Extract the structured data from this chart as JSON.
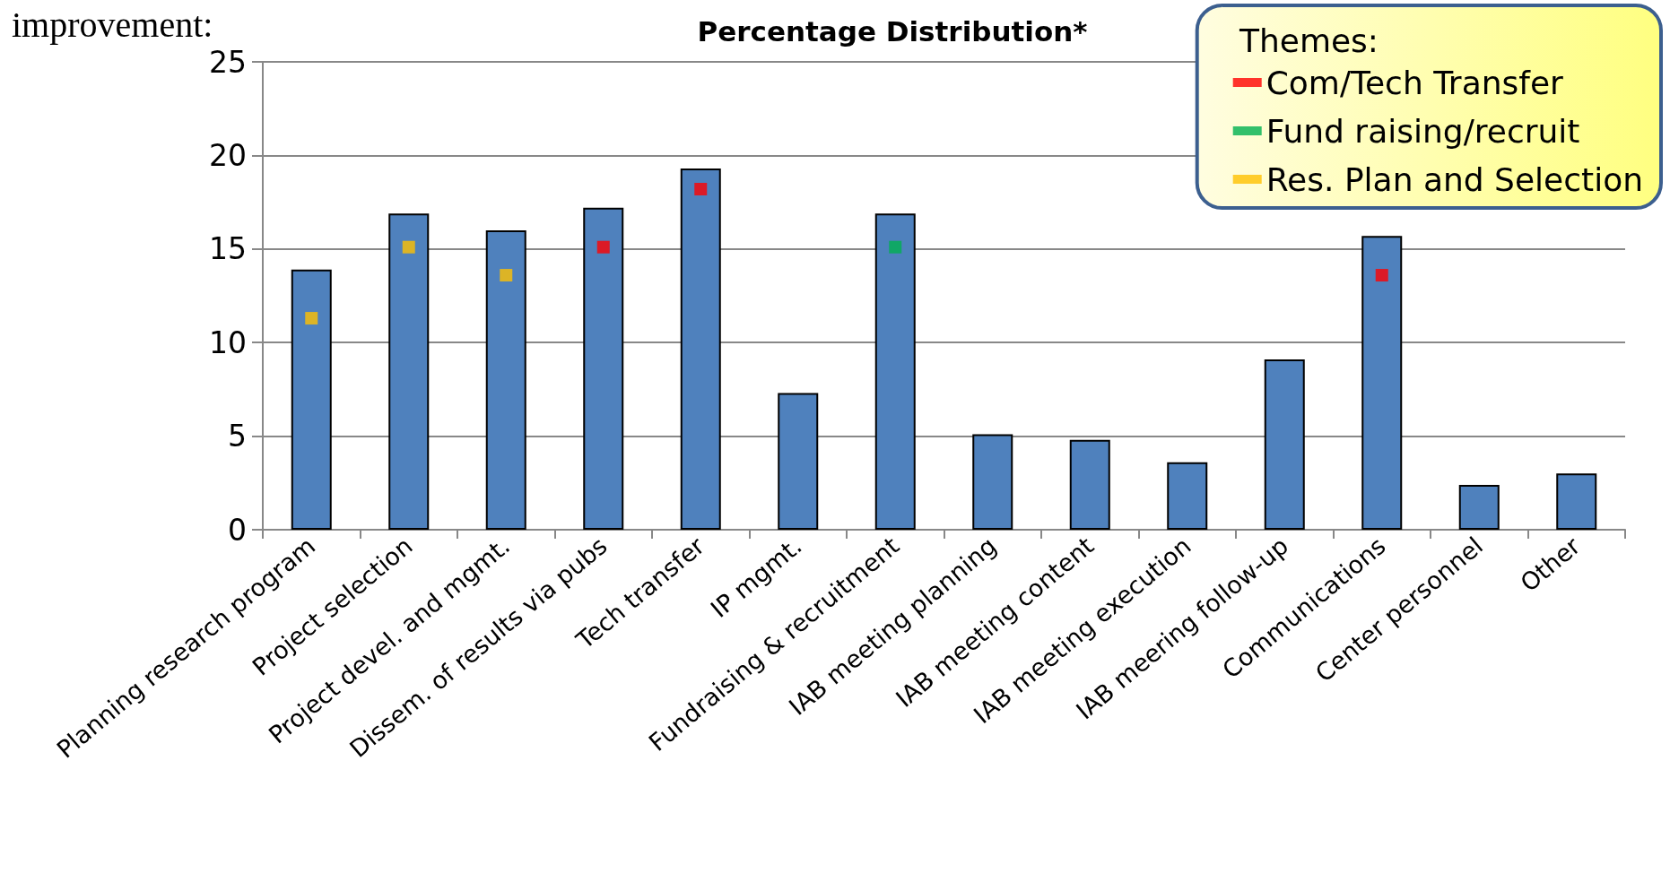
{
  "chart_data": {
    "type": "bar",
    "title": "Percentage Distribution*",
    "legend_title": "Themes:",
    "annotations": [
      "improvement:"
    ],
    "categories": [
      "Planning research program",
      "Project selection",
      "Project devel. and mgmt.",
      "Dissem. of results via pubs",
      "Tech transfer",
      "IP mgmt.",
      "Fundraising & recruitment",
      "IAB meeting planning",
      "IAB meeting content",
      "IAB meeting execution",
      "IAB meering follow-up",
      "Communications",
      "Center personnel",
      "Other"
    ],
    "series": [
      {
        "type": "bar",
        "color": "#4f81bd",
        "values": [
          13.9,
          16.9,
          16.0,
          17.2,
          19.3,
          7.3,
          16.9,
          5.1,
          4.8,
          3.6,
          9.1,
          15.7,
          2.4,
          3.0
        ]
      },
      {
        "type": "scatter",
        "name": "Com/Tech Transfer",
        "color": "#ff0000",
        "x": [
          "Dissem. of results via pubs",
          "Tech transfer",
          "Communications"
        ],
        "values": [
          15.1,
          18.2,
          13.6
        ]
      },
      {
        "type": "scatter",
        "name": "Fund raising/recruit",
        "color": "#00b050",
        "x": [
          "Fundraising & recruitment"
        ],
        "values": [
          15.1
        ]
      },
      {
        "type": "scatter",
        "name": "Res. Plan and Selection",
        "color": "#ffc000",
        "x": [
          "Planning research program",
          "Project selection",
          "Project devel. and mgmt."
        ],
        "values": [
          11.3,
          15.1,
          13.6
        ]
      }
    ],
    "marker": "square",
    "ylim": [
      0,
      25
    ],
    "yticks": [
      0,
      5,
      10,
      15,
      20,
      25
    ],
    "grid": "y",
    "legend": "top right"
  }
}
